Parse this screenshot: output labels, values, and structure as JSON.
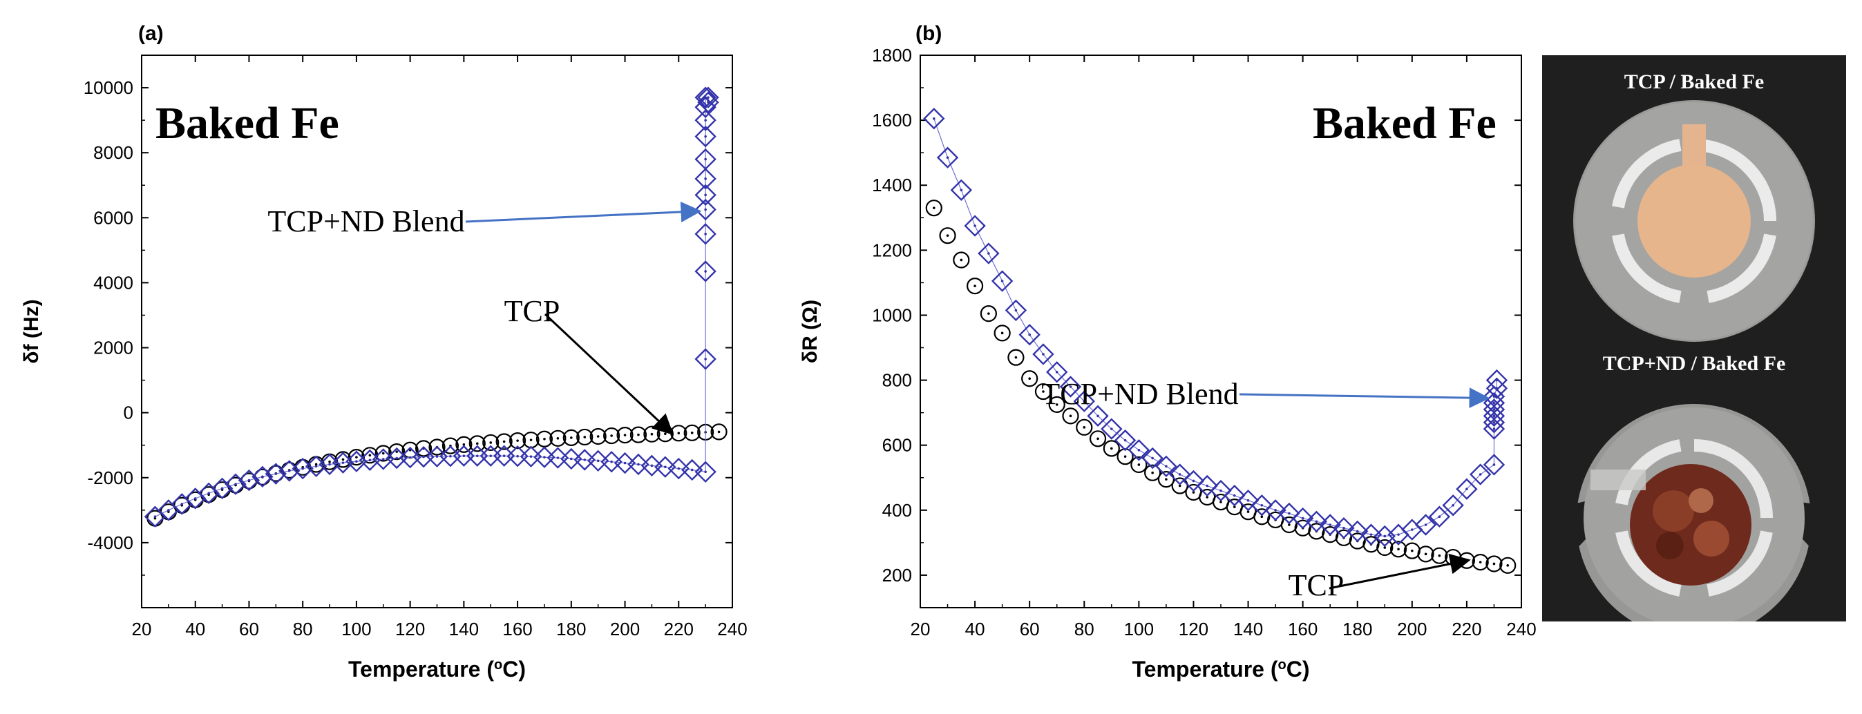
{
  "chart_data": [
    {
      "panel_label": "(a)",
      "type": "scatter",
      "title": "Baked Fe",
      "xlabel": "Temperature (",
      "xlabel_sup": "o",
      "xlabel_unit": "C)",
      "ylabel": "δf (Hz)",
      "xlim": [
        20,
        240
      ],
      "ylim": [
        -6000,
        11000
      ],
      "xticks": [
        20,
        40,
        60,
        80,
        100,
        120,
        140,
        160,
        180,
        200,
        220,
        240
      ],
      "yticks": [
        -4000,
        -2000,
        0,
        2000,
        4000,
        6000,
        8000,
        10000
      ],
      "annotations": [
        {
          "text": "TCP+ND Blend",
          "series": "TCP+ND Blend",
          "arrow_to": [
            227,
            6200
          ],
          "color": "#4472c4"
        },
        {
          "text": "TCP",
          "series": "TCP",
          "arrow_to": [
            217,
            -600
          ],
          "color": "#000000"
        }
      ],
      "series": [
        {
          "name": "TCP",
          "marker": "circle",
          "color": "#000000",
          "x": [
            25,
            30,
            35,
            40,
            45,
            50,
            55,
            60,
            65,
            70,
            75,
            80,
            85,
            90,
            95,
            100,
            105,
            110,
            115,
            120,
            125,
            130,
            135,
            140,
            145,
            150,
            155,
            160,
            165,
            170,
            175,
            180,
            185,
            190,
            195,
            200,
            205,
            210,
            215,
            220,
            225,
            230,
            235
          ],
          "y": [
            -3250,
            -3050,
            -2850,
            -2680,
            -2520,
            -2370,
            -2230,
            -2100,
            -1980,
            -1870,
            -1770,
            -1680,
            -1590,
            -1510,
            -1440,
            -1370,
            -1310,
            -1250,
            -1200,
            -1150,
            -1100,
            -1060,
            -1020,
            -980,
            -950,
            -920,
            -890,
            -860,
            -840,
            -810,
            -790,
            -770,
            -750,
            -730,
            -710,
            -690,
            -680,
            -660,
            -650,
            -630,
            -620,
            -600,
            -590
          ]
        },
        {
          "name": "TCP+ND Blend",
          "marker": "diamond",
          "color": "#3333aa",
          "x": [
            25,
            30,
            35,
            40,
            45,
            50,
            55,
            60,
            65,
            70,
            75,
            80,
            85,
            90,
            95,
            100,
            105,
            110,
            115,
            120,
            125,
            130,
            135,
            140,
            145,
            150,
            155,
            160,
            165,
            170,
            175,
            180,
            185,
            190,
            195,
            200,
            205,
            210,
            215,
            220,
            225,
            230,
            230,
            230,
            230,
            230,
            230,
            230,
            230,
            230,
            230,
            230,
            230,
            231,
            231
          ],
          "y": [
            -3200,
            -3000,
            -2810,
            -2640,
            -2480,
            -2330,
            -2200,
            -2080,
            -1970,
            -1880,
            -1790,
            -1720,
            -1650,
            -1590,
            -1540,
            -1500,
            -1460,
            -1430,
            -1400,
            -1380,
            -1360,
            -1350,
            -1340,
            -1330,
            -1330,
            -1330,
            -1330,
            -1340,
            -1350,
            -1370,
            -1390,
            -1420,
            -1450,
            -1480,
            -1510,
            -1550,
            -1590,
            -1630,
            -1670,
            -1720,
            -1760,
            -1820,
            1650,
            4350,
            5500,
            6250,
            6700,
            7200,
            7800,
            8500,
            9000,
            9400,
            9700,
            9550,
            9700
          ]
        }
      ]
    },
    {
      "panel_label": "(b)",
      "type": "scatter",
      "title": "Baked Fe",
      "xlabel": "Temperature (",
      "xlabel_sup": "o",
      "xlabel_unit": "C)",
      "ylabel": "δR (Ω)",
      "xlim": [
        20,
        240
      ],
      "ylim": [
        100,
        1800
      ],
      "xticks": [
        20,
        40,
        60,
        80,
        100,
        120,
        140,
        160,
        180,
        200,
        220,
        240
      ],
      "yticks": [
        200,
        400,
        600,
        800,
        1000,
        1200,
        1400,
        1600,
        1800
      ],
      "annotations": [
        {
          "text": "TCP+ND Blend",
          "series": "TCP+ND Blend",
          "arrow_to": [
            227,
            745
          ],
          "color": "#4472c4"
        },
        {
          "text": "TCP",
          "series": "TCP",
          "arrow_to": [
            220,
            245
          ],
          "color": "#000000"
        }
      ],
      "series": [
        {
          "name": "TCP",
          "marker": "circle",
          "color": "#000000",
          "x": [
            25,
            30,
            35,
            40,
            45,
            50,
            55,
            60,
            65,
            70,
            75,
            80,
            85,
            90,
            95,
            100,
            105,
            110,
            115,
            120,
            125,
            130,
            135,
            140,
            145,
            150,
            155,
            160,
            165,
            170,
            175,
            180,
            185,
            190,
            195,
            200,
            205,
            210,
            215,
            220,
            225,
            230,
            235
          ],
          "y": [
            1330,
            1245,
            1170,
            1090,
            1005,
            945,
            870,
            805,
            765,
            725,
            690,
            655,
            620,
            590,
            565,
            540,
            515,
            495,
            475,
            455,
            440,
            425,
            410,
            395,
            380,
            370,
            355,
            345,
            335,
            325,
            315,
            305,
            295,
            285,
            280,
            275,
            265,
            260,
            255,
            245,
            240,
            235,
            230
          ]
        },
        {
          "name": "TCP+ND Blend",
          "marker": "diamond",
          "color": "#3333aa",
          "x": [
            25,
            30,
            35,
            40,
            45,
            50,
            55,
            60,
            65,
            70,
            75,
            80,
            85,
            90,
            95,
            100,
            105,
            110,
            115,
            120,
            125,
            130,
            135,
            140,
            145,
            150,
            155,
            160,
            165,
            170,
            175,
            180,
            185,
            190,
            195,
            200,
            205,
            210,
            215,
            220,
            225,
            230,
            230,
            230,
            230,
            230,
            230,
            230,
            231,
            231
          ],
          "y": [
            1605,
            1485,
            1385,
            1275,
            1190,
            1105,
            1015,
            940,
            880,
            825,
            780,
            735,
            690,
            650,
            615,
            585,
            560,
            535,
            510,
            490,
            475,
            460,
            445,
            430,
            415,
            400,
            390,
            375,
            365,
            355,
            345,
            335,
            325,
            320,
            325,
            340,
            355,
            380,
            415,
            465,
            510,
            540,
            650,
            670,
            690,
            710,
            730,
            750,
            775,
            800
          ]
        }
      ]
    }
  ],
  "photos": {
    "top_label": "TCP / Baked Fe",
    "bottom_label": "TCP+ND / Baked Fe"
  }
}
